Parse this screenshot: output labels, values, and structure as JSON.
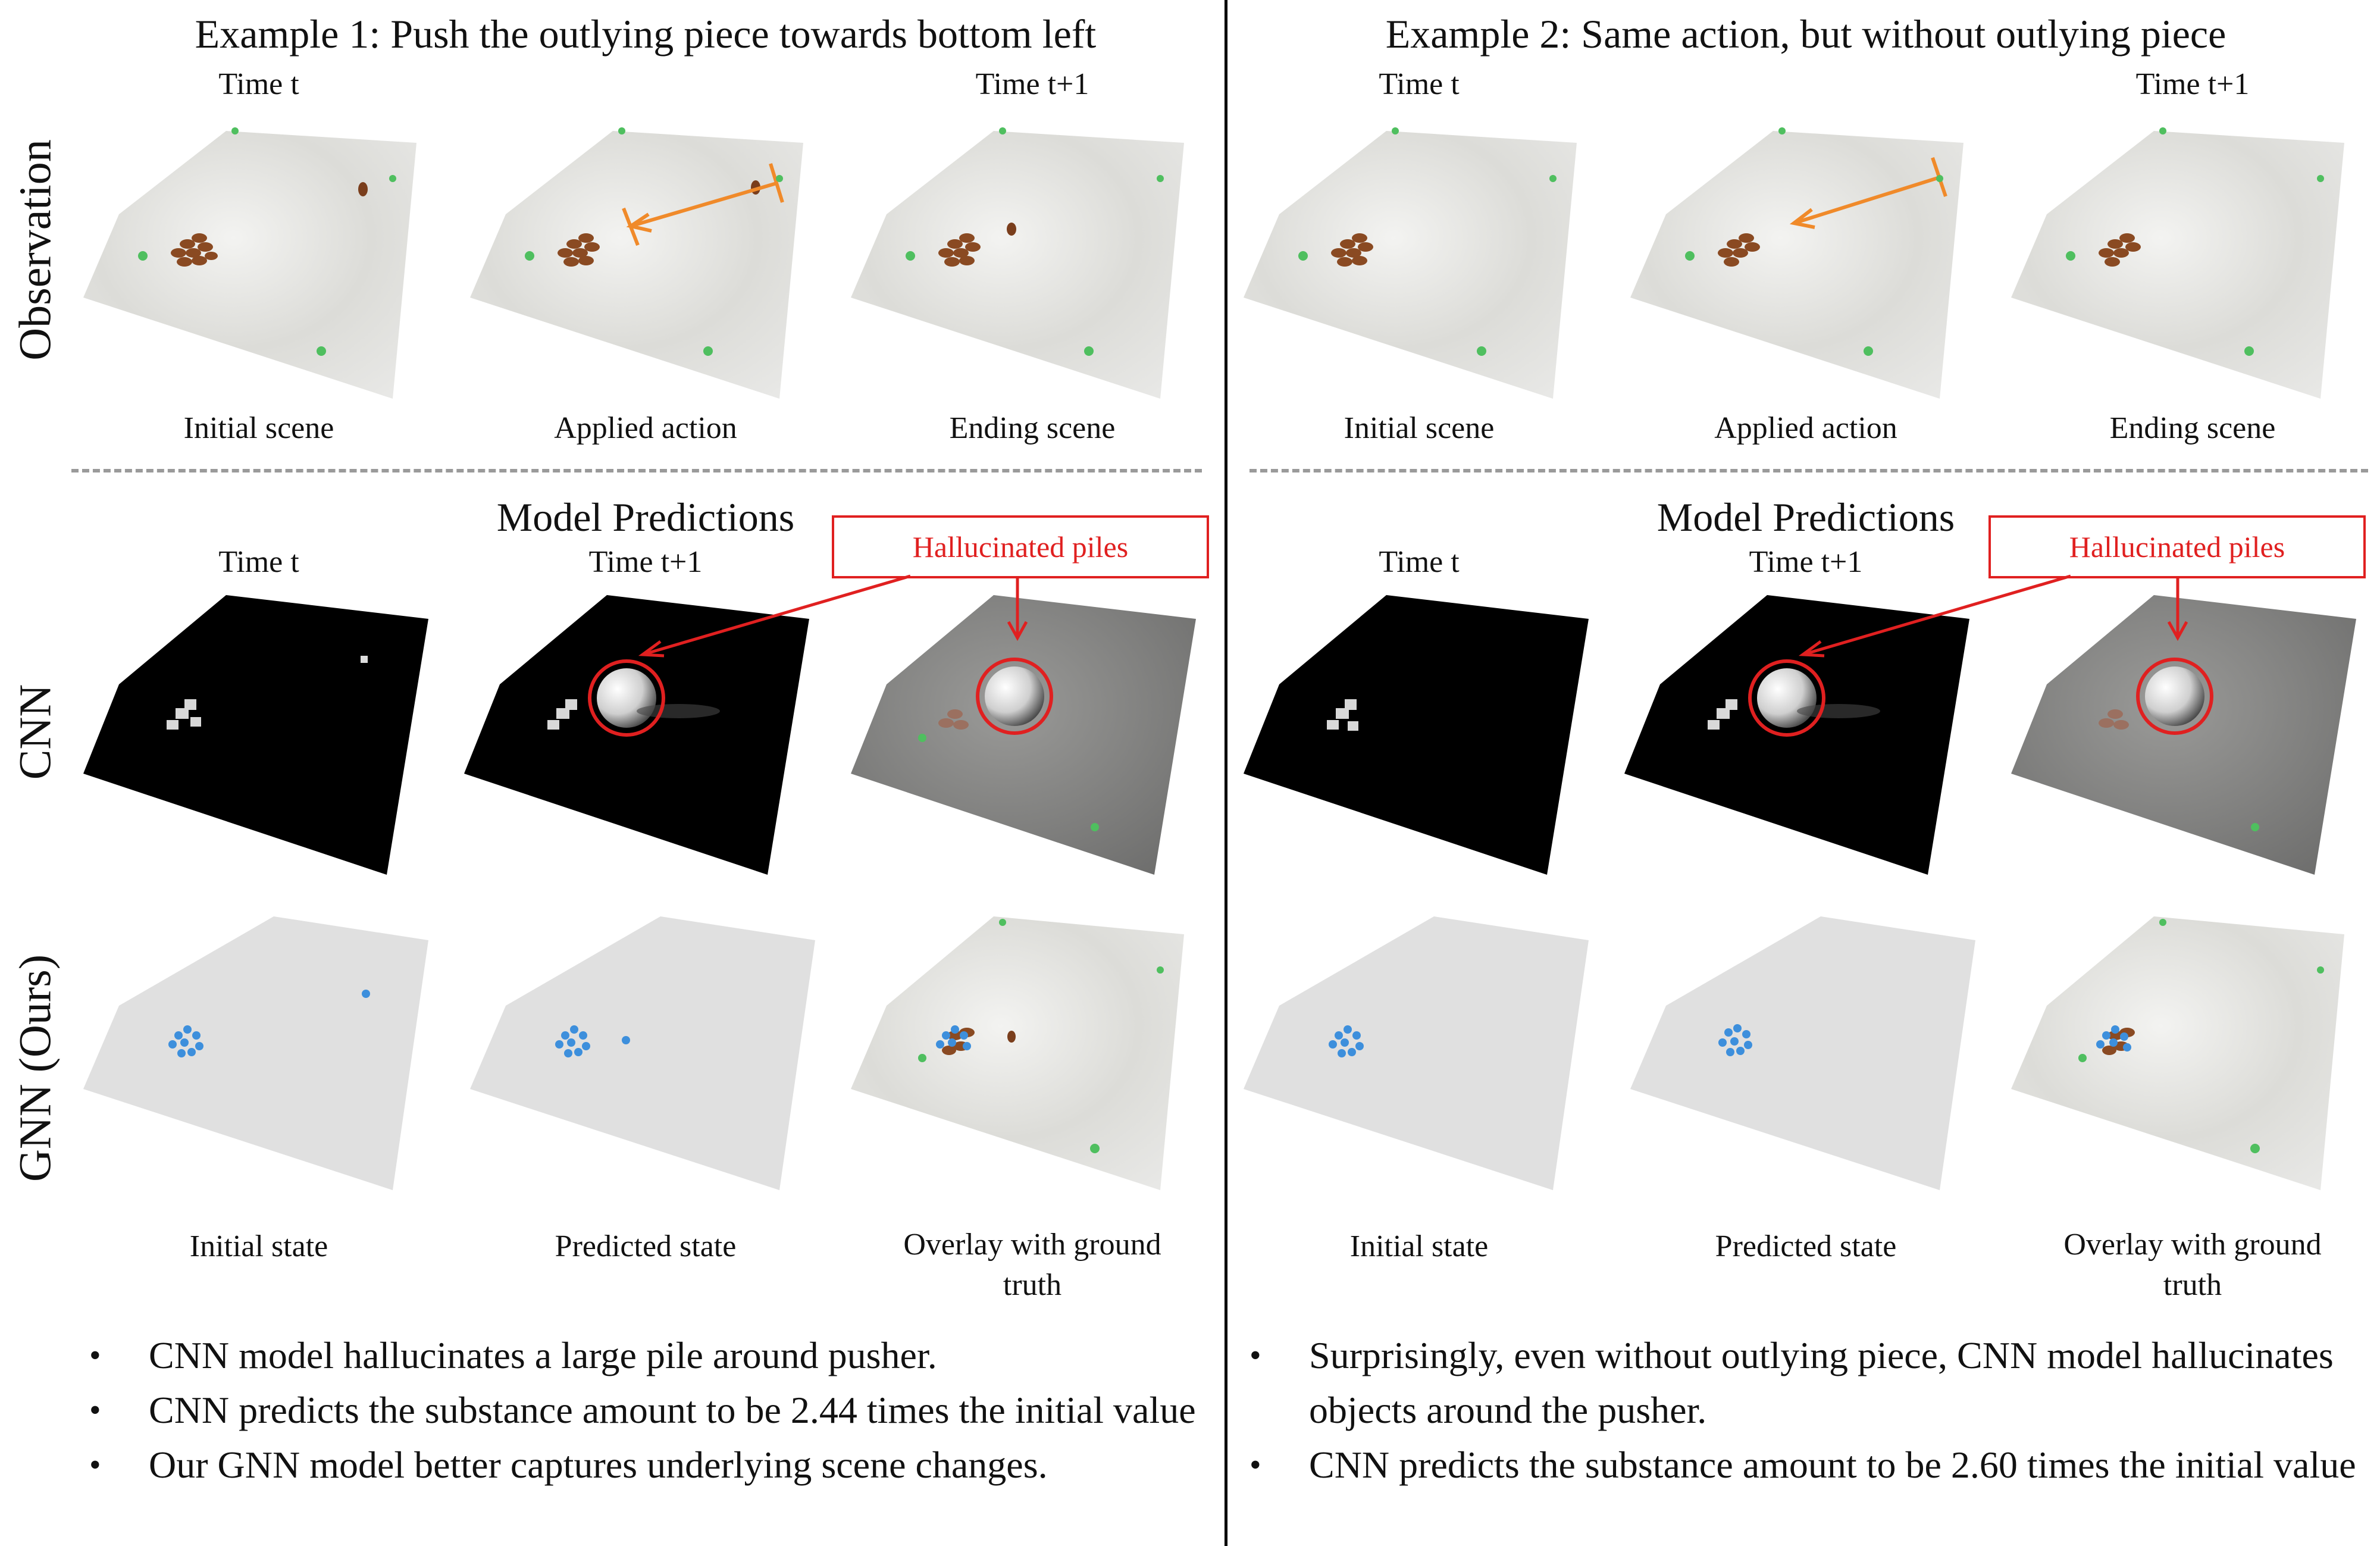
{
  "left": {
    "title": "Example 1: Push the outlying piece towards bottom left",
    "obs_time_t": "Time t",
    "obs_time_t1": "Time t+1",
    "obs_captions": [
      "Initial scene",
      "Applied action",
      "Ending scene"
    ],
    "pred_title": "Model Predictions",
    "pred_time_t": "Time t",
    "pred_time_t1": "Time t+1",
    "callout": "Hallucinated piles",
    "pred_captions": [
      "Initial state",
      "Predicted state",
      "Overlay with ground truth"
    ],
    "bullets": [
      "CNN model hallucinates a large pile around pusher.",
      "CNN predicts the substance amount to be 2.44 times the initial value",
      "Our GNN model better captures underlying scene changes."
    ]
  },
  "right": {
    "title": "Example 2: Same action, but without outlying piece",
    "obs_time_t": "Time t",
    "obs_time_t1": "Time t+1",
    "obs_captions": [
      "Initial scene",
      "Applied action",
      "Ending scene"
    ],
    "pred_title": "Model Predictions",
    "pred_time_t": "Time t",
    "pred_time_t1": "Time t+1",
    "callout": "Hallucinated piles",
    "pred_captions": [
      "Initial state",
      "Predicted state",
      "Overlay with ground truth"
    ],
    "bullets": [
      "Surprisingly, even without outlying piece, CNN model hallucinates objects around the pusher.",
      "CNN predicts the substance amount to be 2.60 times the initial value"
    ]
  },
  "row_labels": {
    "observation": "Observation",
    "cnn": "CNN",
    "gnn": "GNN (Ours)"
  },
  "colors": {
    "callout": "#e02020",
    "action_arrow": "#f08a2a",
    "particle": "#3d8fdc",
    "piece": "#8a4a22",
    "marker": "#4fbf5f"
  }
}
